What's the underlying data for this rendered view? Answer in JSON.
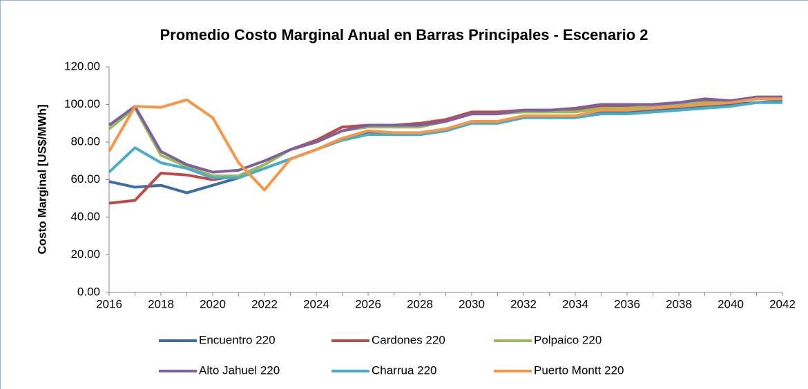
{
  "chart_data": {
    "type": "line",
    "title": "Promedio Costo Marginal Anual en Barras Principales - Escenario 2",
    "y_label": "Costo Marginal [US$/MWh]",
    "categories": [
      "2016",
      null,
      "2018",
      null,
      "2020",
      null,
      "2022",
      null,
      "2024",
      null,
      "2026",
      null,
      "2028",
      null,
      "2030",
      null,
      "2032",
      null,
      "2034",
      null,
      "2036",
      null,
      "2038",
      null,
      "2040",
      null,
      "2042"
    ],
    "ylim": [
      0,
      120
    ],
    "yticks": [
      {
        "value": 0,
        "label": "0.00"
      },
      {
        "value": 20,
        "label": "20.00"
      },
      {
        "value": 40,
        "label": "40.00"
      },
      {
        "value": 60,
        "label": "60.00"
      },
      {
        "value": 80,
        "label": "80.00"
      },
      {
        "value": 100,
        "label": "100.00"
      },
      {
        "value": 120,
        "label": "120.00"
      }
    ],
    "grid": false,
    "legend": "bottom",
    "series": [
      {
        "name": "Encuentro 220",
        "color": "#3b6ea8",
        "values": [
          59,
          56,
          57,
          53,
          57,
          61,
          66,
          71,
          76,
          82,
          85,
          84,
          84,
          86,
          91,
          90,
          93,
          93,
          93,
          96,
          96,
          97,
          98,
          99,
          100,
          101,
          102
        ]
      },
      {
        "name": "Cardones 220",
        "color": "#be4b48",
        "values": [
          47.5,
          49,
          63.5,
          62.5,
          60,
          62,
          68,
          76,
          81,
          88,
          89,
          89,
          90,
          92,
          96,
          96,
          97,
          97,
          97,
          99,
          99,
          100,
          101,
          102,
          102,
          103,
          104
        ]
      },
      {
        "name": "Polpaico 220",
        "color": "#9bbb59",
        "values": [
          87,
          98,
          73,
          67,
          62,
          62,
          68,
          76,
          80,
          86,
          88,
          88,
          88,
          91,
          95,
          95,
          96,
          96,
          96,
          98,
          98,
          99,
          100,
          101,
          101,
          103,
          103
        ]
      },
      {
        "name": "Alto Jahuel 220",
        "color": "#7e5fa0",
        "values": [
          89,
          99,
          75,
          68,
          64,
          65,
          70,
          76,
          80,
          86,
          89,
          89,
          89,
          91,
          95,
          95,
          97,
          97,
          98,
          100,
          100,
          100,
          101,
          103,
          102,
          104,
          104
        ]
      },
      {
        "name": "Charrua 220",
        "color": "#4bacc6",
        "values": [
          64,
          77,
          69,
          66,
          61,
          61,
          66,
          71,
          76,
          81,
          84,
          84,
          84,
          86,
          90,
          90,
          93,
          93,
          93,
          95,
          95,
          96,
          97,
          98,
          99,
          101,
          101
        ]
      },
      {
        "name": "Puerto Montt 220",
        "color": "#f79646",
        "values": [
          75,
          99,
          98.5,
          102.5,
          93,
          69,
          54.5,
          71,
          76,
          82,
          86,
          85,
          85,
          87,
          91,
          91,
          94,
          94,
          94,
          97,
          97,
          98,
          99,
          100,
          101,
          103,
          103
        ]
      }
    ]
  }
}
